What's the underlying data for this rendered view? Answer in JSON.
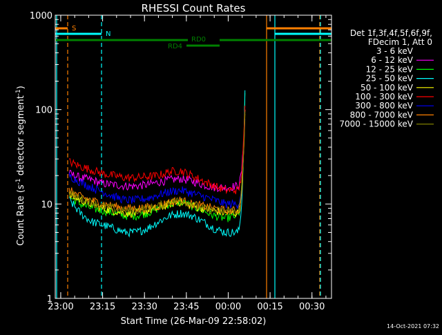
{
  "chart_data": {
    "type": "line",
    "title": "RHESSI Count Rates",
    "xlabel": "Start Time (26-Mar-09 22:58:02)",
    "ylabel_main": "Count Rate (s",
    "ylabel_sup": "-1",
    "ylabel_mid": " detector segment",
    "ylabel_sup2": "-1",
    "ylabel_end": ")",
    "yscale": "log",
    "ylim": [
      1,
      1000
    ],
    "xlim": [
      "22:58:02",
      "00:37:00"
    ],
    "x_ticks": [
      "23:00",
      "23:15",
      "23:30",
      "23:45",
      "00:00",
      "00:15",
      "00:30"
    ],
    "y_ticks": [
      "1",
      "10",
      "100",
      "1000"
    ],
    "legend": {
      "header_line1": "Det 1f,3f,4f,5f,6f,9f,",
      "header_line2": "FDecim 1, Att 0",
      "placement": "right"
    },
    "series": [
      {
        "name": "3 - 6 keV",
        "color": "#000000",
        "values": [
          13,
          11,
          10,
          9.5,
          8.5,
          8,
          8,
          8.5,
          9,
          10.5,
          11,
          10,
          9,
          8.5,
          8.5,
          9,
          100
        ]
      },
      {
        "name": "6 - 12 keV",
        "color": "#ff00ff",
        "values": [
          21,
          19,
          18,
          16.5,
          16,
          15.5,
          15.5,
          16,
          17,
          18,
          18.5,
          17.5,
          16,
          15,
          15,
          15.5,
          100
        ]
      },
      {
        "name": "12 - 25 keV",
        "color": "#00ff00",
        "values": [
          12,
          10,
          9,
          8.5,
          8,
          7.5,
          7.5,
          8,
          9,
          10,
          10.5,
          9.5,
          8.5,
          7.5,
          7,
          7.5,
          150
        ]
      },
      {
        "name": "25 - 50 keV",
        "color": "#00ffff",
        "values": [
          11,
          8,
          6.5,
          6,
          5.5,
          5,
          5,
          5.5,
          6.5,
          7.5,
          8,
          7.5,
          6.5,
          5.5,
          5,
          5,
          160
        ]
      },
      {
        "name": "50 - 100 keV",
        "color": "#ffff00",
        "values": [
          12.5,
          11,
          10,
          9,
          8.5,
          8,
          8,
          8.5,
          9,
          10,
          10.5,
          9.5,
          9,
          8.5,
          8,
          8,
          100
        ]
      },
      {
        "name": "100 - 300 keV",
        "color": "#ff0000",
        "values": [
          28,
          25,
          23,
          21,
          20,
          19,
          19,
          19.5,
          20,
          22,
          22.5,
          20,
          17.5,
          15.5,
          14,
          14,
          110
        ]
      },
      {
        "name": "300 - 800 keV",
        "color": "#0000ff",
        "values": [
          20,
          17,
          15,
          13.5,
          12,
          11,
          11,
          11.5,
          12.5,
          13.5,
          14,
          13,
          12,
          11,
          10,
          10,
          80
        ]
      },
      {
        "name": "800 - 7000 keV",
        "color": "#ff8000",
        "values": [
          14,
          12,
          11,
          10,
          9.5,
          9,
          9,
          9.2,
          9.5,
          10.5,
          11,
          10,
          9.5,
          9,
          8.5,
          8.5,
          90
        ]
      },
      {
        "name": "7000 - 15000 keV",
        "color": "#808000",
        "values": [
          13,
          11.5,
          10.5,
          9.5,
          9,
          8.5,
          8.5,
          9,
          9.5,
          10.5,
          11,
          10,
          9,
          8.5,
          8.5,
          8.5,
          95
        ]
      }
    ],
    "series_x": [
      "23:03",
      "23:07",
      "23:11",
      "23:15",
      "23:19",
      "23:23",
      "23:27",
      "23:31",
      "23:35",
      "23:39",
      "23:43",
      "23:47",
      "23:51",
      "23:55",
      "23:59",
      "00:03",
      "00:06"
    ],
    "flags": [
      {
        "label": "S",
        "color": "#ff8000"
      },
      {
        "label": "N",
        "color": "#00ffff"
      },
      {
        "label": "RD0",
        "color": "#008000"
      },
      {
        "label": "RD4",
        "color": "#008000"
      }
    ],
    "timestamp": "14-Oct-2021 07:32"
  }
}
